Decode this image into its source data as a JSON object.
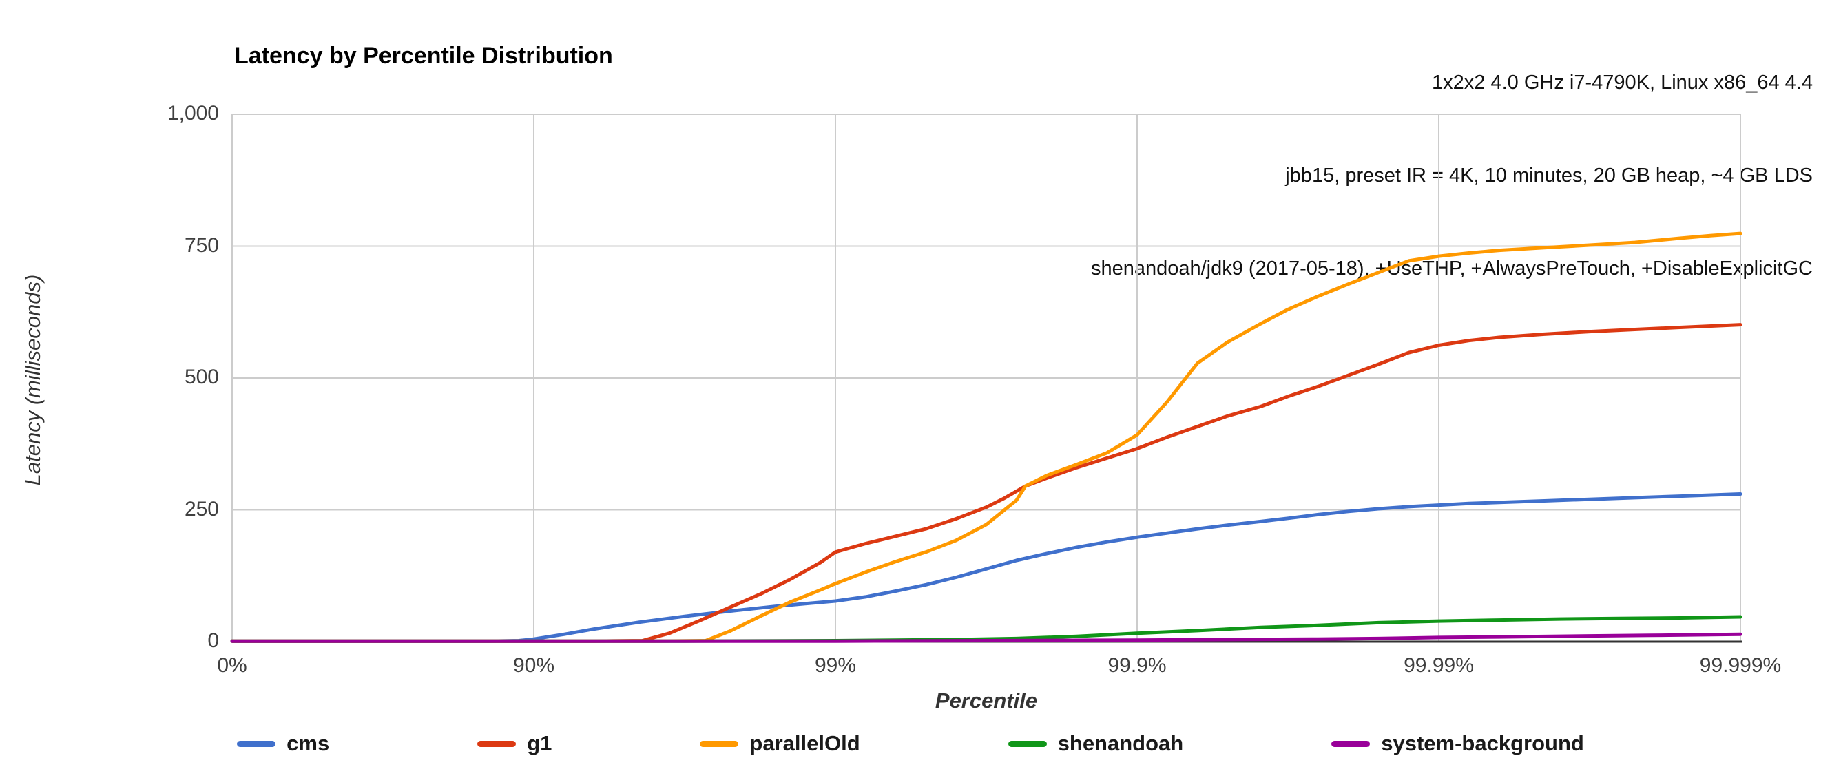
{
  "header": {
    "line1": "1x2x2 4.0 GHz i7-4790K, Linux x86_64 4.4",
    "line2": "jbb15, preset IR = 4K, 10 minutes, 20 GB heap, ~4 GB LDS",
    "line3": "shenandoah/jdk9 (2017-05-18), +UseTHP, +AlwaysPreTouch, +DisableExplicitGC"
  },
  "title": "Latency by Percentile Distribution",
  "axes": {
    "y_title": "Latency (milliseconds)",
    "x_title": "Percentile",
    "y_tick_labels": [
      "0",
      "250",
      "500",
      "750",
      "1,000"
    ],
    "y_tick_values": [
      0,
      250,
      500,
      750,
      1000
    ],
    "x_tick_labels": [
      "0%",
      "90%",
      "99%",
      "99.9%",
      "99.99%",
      "99.999%"
    ]
  },
  "legend": [
    {
      "label": "cms",
      "color": "#4070CC"
    },
    {
      "label": "g1",
      "color": "#DC3912"
    },
    {
      "label": "parallelOld",
      "color": "#FF9900"
    },
    {
      "label": "shenandoah",
      "color": "#109618"
    },
    {
      "label": "system-background",
      "color": "#990099"
    }
  ],
  "style_colors": {
    "grid": "#cccccc",
    "axis": "#333333",
    "text": "#404040"
  },
  "chart_data": {
    "type": "line",
    "title": "Latency by Percentile Distribution",
    "xlabel": "Percentile",
    "ylabel": "Latency (milliseconds)",
    "ylim": [
      0,
      1000
    ],
    "grid": true,
    "legend_position": "bottom",
    "x_scale_note": "x is log-percentile decades d=log10(1/(1-p)): 0=0%, 1=90%, 2=99%, 3=99.9%, 4=99.99%, 5=99.999%",
    "x_ticks_decades": [
      0,
      1,
      2,
      3,
      4,
      5
    ],
    "x_tick_labels": [
      "0%",
      "90%",
      "99%",
      "99.9%",
      "99.99%",
      "99.999%"
    ],
    "y_ticks": [
      0,
      250,
      500,
      750,
      1000
    ],
    "series": [
      {
        "name": "cms",
        "color": "#4070CC",
        "points_ms": [
          [
            0,
            1
          ],
          [
            0.3,
            1
          ],
          [
            0.6,
            1
          ],
          [
            0.85,
            1
          ],
          [
            0.95,
            2
          ],
          [
            1.0,
            5
          ],
          [
            1.1,
            14
          ],
          [
            1.2,
            24
          ],
          [
            1.35,
            37
          ],
          [
            1.5,
            48
          ],
          [
            1.65,
            58
          ],
          [
            1.8,
            67
          ],
          [
            1.9,
            72
          ],
          [
            2.0,
            77
          ],
          [
            2.1,
            85
          ],
          [
            2.2,
            96
          ],
          [
            2.3,
            108
          ],
          [
            2.4,
            122
          ],
          [
            2.5,
            138
          ],
          [
            2.6,
            154
          ],
          [
            2.7,
            167
          ],
          [
            2.8,
            179
          ],
          [
            2.9,
            189
          ],
          [
            3.0,
            198
          ],
          [
            3.1,
            206
          ],
          [
            3.2,
            214
          ],
          [
            3.3,
            221
          ],
          [
            3.41,
            228
          ],
          [
            3.5,
            234
          ],
          [
            3.6,
            241
          ],
          [
            3.7,
            247
          ],
          [
            3.8,
            252
          ],
          [
            3.9,
            256
          ],
          [
            4.0,
            259
          ],
          [
            4.1,
            262
          ],
          [
            4.2,
            264
          ],
          [
            4.35,
            267
          ],
          [
            4.5,
            270
          ],
          [
            4.65,
            273
          ],
          [
            4.8,
            276
          ],
          [
            5.0,
            280
          ]
        ]
      },
      {
        "name": "g1",
        "color": "#DC3912",
        "points_ms": [
          [
            0,
            1
          ],
          [
            0.5,
            1
          ],
          [
            1.0,
            1
          ],
          [
            1.2,
            1
          ],
          [
            1.36,
            2
          ],
          [
            1.45,
            16
          ],
          [
            1.55,
            40
          ],
          [
            1.65,
            65
          ],
          [
            1.75,
            90
          ],
          [
            1.85,
            118
          ],
          [
            1.95,
            150
          ],
          [
            2.0,
            170
          ],
          [
            2.1,
            186
          ],
          [
            2.2,
            200
          ],
          [
            2.3,
            214
          ],
          [
            2.4,
            233
          ],
          [
            2.5,
            255
          ],
          [
            2.56,
            272
          ],
          [
            2.63,
            295
          ],
          [
            2.7,
            310
          ],
          [
            2.8,
            330
          ],
          [
            2.9,
            348
          ],
          [
            3.0,
            366
          ],
          [
            3.1,
            388
          ],
          [
            3.2,
            408
          ],
          [
            3.3,
            428
          ],
          [
            3.41,
            446
          ],
          [
            3.5,
            465
          ],
          [
            3.6,
            484
          ],
          [
            3.7,
            505
          ],
          [
            3.8,
            526
          ],
          [
            3.9,
            548
          ],
          [
            4.0,
            562
          ],
          [
            4.1,
            571
          ],
          [
            4.2,
            577
          ],
          [
            4.35,
            583
          ],
          [
            4.5,
            588
          ],
          [
            4.65,
            592
          ],
          [
            4.8,
            596
          ],
          [
            5.0,
            601
          ]
        ]
      },
      {
        "name": "parallelOld",
        "color": "#FF9900",
        "points_ms": [
          [
            0,
            1
          ],
          [
            0.5,
            1
          ],
          [
            1.0,
            1
          ],
          [
            1.4,
            1
          ],
          [
            1.57,
            2
          ],
          [
            1.65,
            20
          ],
          [
            1.75,
            48
          ],
          [
            1.85,
            75
          ],
          [
            1.95,
            98
          ],
          [
            2.0,
            110
          ],
          [
            2.1,
            132
          ],
          [
            2.2,
            152
          ],
          [
            2.3,
            170
          ],
          [
            2.4,
            192
          ],
          [
            2.5,
            222
          ],
          [
            2.6,
            268
          ],
          [
            2.63,
            295
          ],
          [
            2.7,
            315
          ],
          [
            2.8,
            336
          ],
          [
            2.9,
            358
          ],
          [
            3.0,
            392
          ],
          [
            3.1,
            455
          ],
          [
            3.2,
            528
          ],
          [
            3.3,
            568
          ],
          [
            3.41,
            603
          ],
          [
            3.5,
            630
          ],
          [
            3.6,
            655
          ],
          [
            3.7,
            678
          ],
          [
            3.8,
            700
          ],
          [
            3.9,
            722
          ],
          [
            4.0,
            731
          ],
          [
            4.1,
            737
          ],
          [
            4.2,
            742
          ],
          [
            4.35,
            747
          ],
          [
            4.5,
            752
          ],
          [
            4.65,
            757
          ],
          [
            4.8,
            765
          ],
          [
            4.9,
            770
          ],
          [
            5.0,
            774
          ]
        ]
      },
      {
        "name": "shenandoah",
        "color": "#109618",
        "points_ms": [
          [
            0,
            1
          ],
          [
            0.5,
            1
          ],
          [
            1.0,
            1
          ],
          [
            1.5,
            1
          ],
          [
            2.0,
            2
          ],
          [
            2.2,
            3
          ],
          [
            2.4,
            4
          ],
          [
            2.6,
            6
          ],
          [
            2.8,
            10
          ],
          [
            3.0,
            16
          ],
          [
            3.2,
            21
          ],
          [
            3.41,
            27
          ],
          [
            3.6,
            31
          ],
          [
            3.8,
            36
          ],
          [
            4.0,
            39
          ],
          [
            4.2,
            41
          ],
          [
            4.4,
            43
          ],
          [
            4.6,
            44
          ],
          [
            4.8,
            45
          ],
          [
            5.0,
            47
          ]
        ]
      },
      {
        "name": "system-background",
        "color": "#990099",
        "points_ms": [
          [
            0,
            1
          ],
          [
            1.0,
            1
          ],
          [
            2.0,
            1
          ],
          [
            2.5,
            2
          ],
          [
            3.0,
            3
          ],
          [
            3.3,
            4
          ],
          [
            3.6,
            5
          ],
          [
            3.8,
            6
          ],
          [
            4.0,
            8
          ],
          [
            4.2,
            9
          ],
          [
            4.5,
            11
          ],
          [
            4.7,
            12
          ],
          [
            5.0,
            14
          ]
        ]
      }
    ]
  }
}
